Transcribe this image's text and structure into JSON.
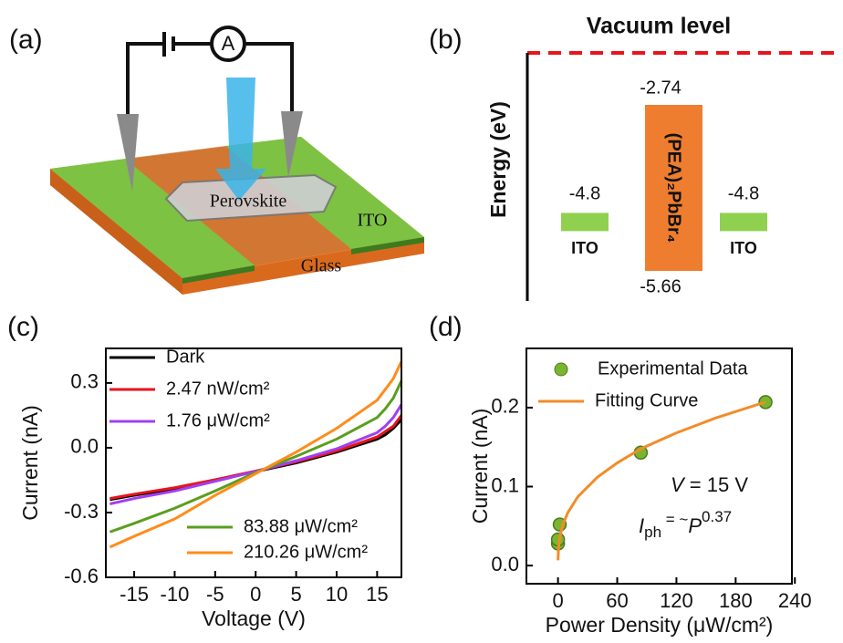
{
  "panels": {
    "a": {
      "label": "(a)",
      "meter": "A",
      "sample": "Perovskite",
      "electrode": "ITO",
      "substrate": "Glass"
    },
    "b": {
      "label": "(b)",
      "title": "Vacuum level",
      "ylabel": "Energy (eV)",
      "material": "(PEA)₂PbBr₄",
      "material_top": -2.74,
      "material_bottom": -5.66,
      "electrodes": [
        {
          "name": "ITO",
          "level": -4.8
        },
        {
          "name": "ITO",
          "level": -4.8
        }
      ]
    }
  },
  "chart_data": [
    {
      "type": "line",
      "label": "(c)",
      "xlabel": "Voltage (V)",
      "ylabel": "Current (nA)",
      "x": [
        -18,
        -15,
        -10,
        -5,
        0,
        5,
        10,
        15,
        16,
        17,
        18
      ],
      "series": [
        {
          "name": "Dark",
          "color": "#000000",
          "values": [
            -0.24,
            -0.22,
            -0.19,
            -0.15,
            -0.11,
            -0.07,
            -0.02,
            0.04,
            0.06,
            0.09,
            0.13
          ]
        },
        {
          "name": "2.47 nW/cm²",
          "color": "#e8141c",
          "values": [
            -0.235,
            -0.215,
            -0.185,
            -0.148,
            -0.108,
            -0.065,
            -0.015,
            0.05,
            0.075,
            0.1,
            0.15
          ]
        },
        {
          "name": "1.76 μW/cm²",
          "color": "#a040f0",
          "values": [
            -0.26,
            -0.235,
            -0.2,
            -0.155,
            -0.11,
            -0.06,
            -0.005,
            0.07,
            0.1,
            0.14,
            0.2
          ]
        },
        {
          "name": "83.88 μW/cm²",
          "color": "#5a9e1e",
          "values": [
            -0.39,
            -0.35,
            -0.28,
            -0.2,
            -0.115,
            -0.04,
            0.04,
            0.14,
            0.18,
            0.23,
            0.31
          ]
        },
        {
          "name": "210.26 μW/cm²",
          "color": "#ff8c1a",
          "values": [
            -0.46,
            -0.41,
            -0.33,
            -0.22,
            -0.12,
            -0.02,
            0.09,
            0.22,
            0.27,
            0.32,
            0.4
          ]
        }
      ],
      "xlim": [
        -18.5,
        18
      ],
      "ylim": [
        -0.6,
        0.46
      ],
      "xticks": [
        -15,
        -10,
        -5,
        0,
        5,
        10,
        15
      ],
      "yticks": [
        -0.6,
        -0.3,
        {
          "value": 0,
          "label": "0.0"
        },
        0.3
      ]
    },
    {
      "type": "scatter",
      "label": "(d)",
      "xlabel": "Power Density (μW/cm²)",
      "ylabel": "Current (nA)",
      "series": [
        {
          "name": "Experimental Data",
          "color": "#7ab530",
          "style": "marker",
          "x": [
            0,
            0.00247,
            1.76,
            83.88,
            210.26
          ],
          "values": [
            0.028,
            0.033,
            0.052,
            0.143,
            0.207
          ]
        },
        {
          "name": "Fitting Curve",
          "color": "#f28c28",
          "style": "line",
          "x": [
            0.02,
            0.5,
            2,
            5,
            10,
            20,
            40,
            60,
            84,
            120,
            160,
            210
          ],
          "values": [
            0.0067,
            0.022,
            0.037,
            0.052,
            0.067,
            0.087,
            0.112,
            0.13,
            0.148,
            0.168,
            0.187,
            0.207
          ]
        }
      ],
      "annotations": [
        [
          "V",
          " = 15 V"
        ],
        [
          "I",
          "ph",
          " = ~",
          "P",
          "0.37"
        ]
      ],
      "xlim": [
        -32,
        237
      ],
      "ylim": [
        -0.023,
        0.275
      ],
      "xticks": [
        0,
        60,
        120,
        180,
        240
      ],
      "yticks": [
        {
          "value": 0,
          "label": "0.0"
        },
        0.1,
        0.2
      ]
    }
  ]
}
